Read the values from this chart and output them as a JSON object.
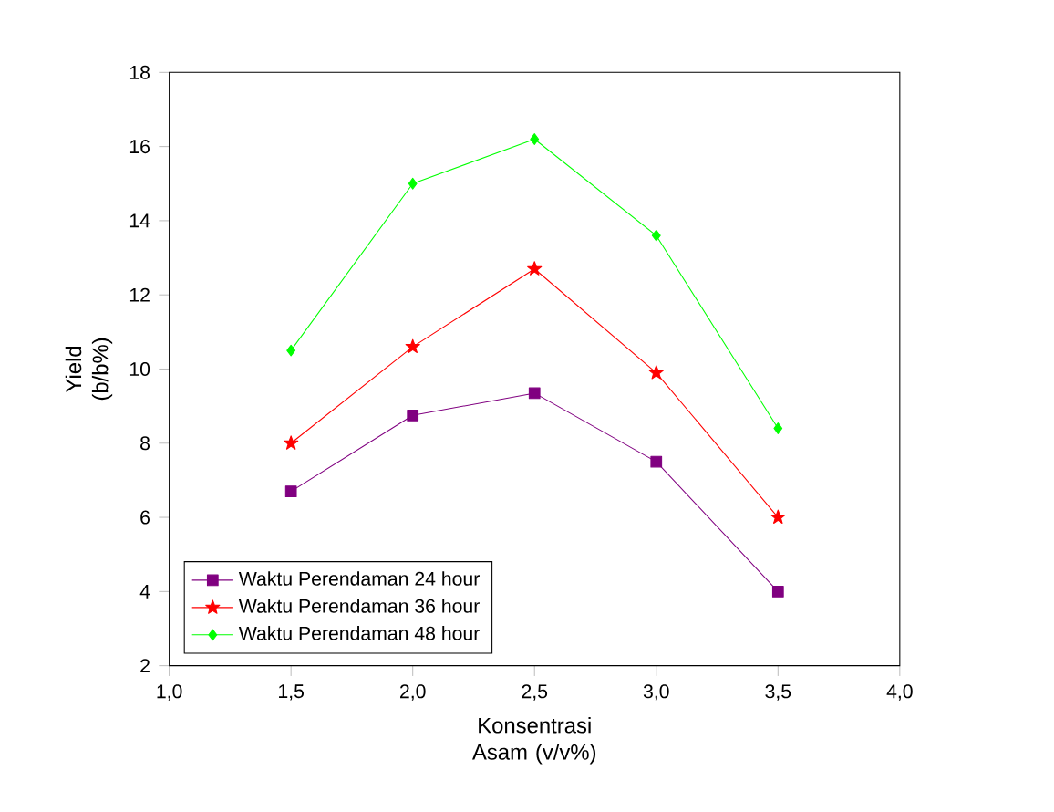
{
  "chart_data": {
    "type": "line",
    "xlabel": "Konsentrasi Asam (v/v%)",
    "ylabel": "Yield (b/b%)",
    "x": [
      1.5,
      2.0,
      2.5,
      3.0,
      3.5
    ],
    "series": [
      {
        "name": "Waktu Perendaman 24 hour",
        "color": "#800080",
        "marker": "square",
        "values": [
          6.7,
          8.75,
          9.35,
          7.5,
          4.0
        ]
      },
      {
        "name": "Waktu Perendaman 36 hour",
        "color": "#ff0000",
        "marker": "star",
        "values": [
          8.0,
          10.6,
          12.7,
          9.9,
          6.0
        ]
      },
      {
        "name": "Waktu Perendaman 48 hour",
        "color": "#00ff00",
        "marker": "diamond",
        "values": [
          10.5,
          15.0,
          16.2,
          13.6,
          8.4
        ]
      }
    ],
    "xlim": [
      1.0,
      4.0
    ],
    "xticks": [
      {
        "value": 1.0,
        "label": "1,0"
      },
      {
        "value": 1.5,
        "label": "1,5"
      },
      {
        "value": 2.0,
        "label": "2,0"
      },
      {
        "value": 2.5,
        "label": "2,5"
      },
      {
        "value": 3.0,
        "label": "3,0"
      },
      {
        "value": 3.5,
        "label": "3,5"
      },
      {
        "value": 4.0,
        "label": "4,0"
      }
    ],
    "ylim": [
      2,
      18
    ],
    "yticks": [
      2,
      4,
      6,
      8,
      10,
      12,
      14,
      16,
      18
    ],
    "legend": "bottom left",
    "grid": false
  }
}
